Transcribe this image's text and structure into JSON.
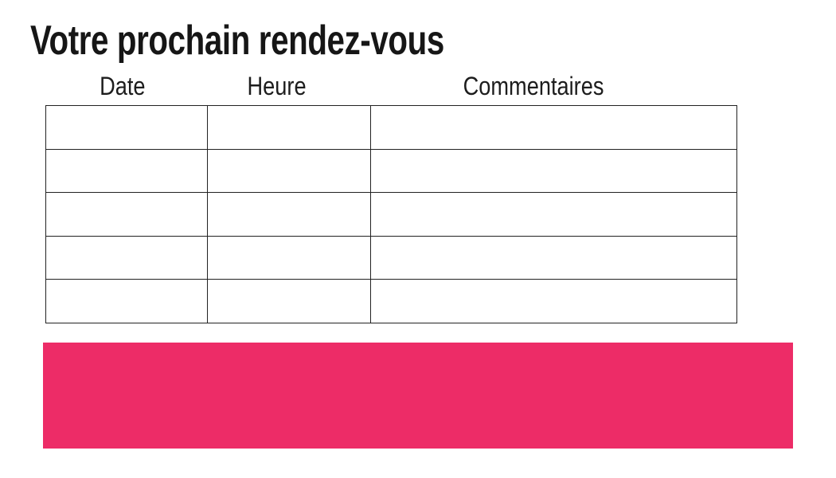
{
  "page": {
    "title": "Votre prochain rendez-vous",
    "background": "#ffffff"
  },
  "table": {
    "headers": [
      "Date",
      "Heure",
      "Commentaires"
    ],
    "rows": [
      [
        "",
        "",
        ""
      ],
      [
        "",
        "",
        ""
      ],
      [
        "",
        "",
        ""
      ],
      [
        "",
        "",
        ""
      ],
      [
        "",
        "",
        ""
      ]
    ],
    "border_color": "#222222"
  },
  "banner": {
    "label": "",
    "color": "#ED2C67"
  }
}
